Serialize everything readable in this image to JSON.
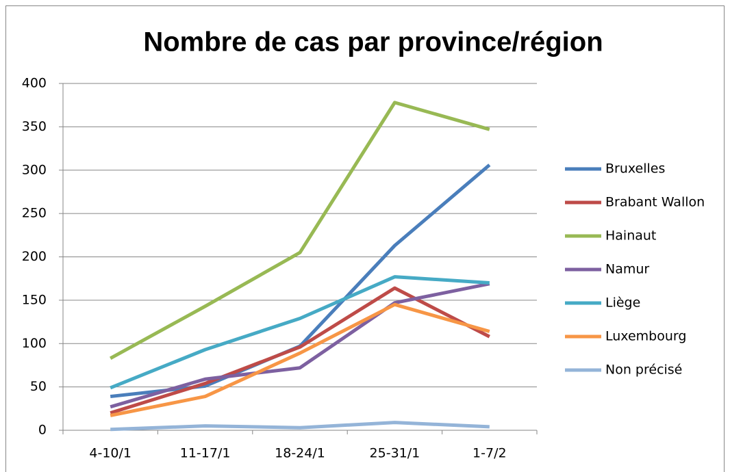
{
  "chart_data": {
    "type": "line",
    "title": "Nombre de cas par province/région",
    "categories": [
      "4-10/1",
      "11-17/1",
      "18-24/1",
      "25-31/1",
      "1-7/2"
    ],
    "series": [
      {
        "name": "Bruxelles",
        "color": "#4a7ebb",
        "values": [
          39,
          51,
          97,
          213,
          306
        ]
      },
      {
        "name": "Brabant Wallon",
        "color": "#be4b48",
        "values": [
          20,
          54,
          96,
          164,
          108
        ]
      },
      {
        "name": "Hainaut",
        "color": "#98b954",
        "values": [
          83,
          143,
          205,
          378,
          347
        ]
      },
      {
        "name": "Namur",
        "color": "#7d60a0",
        "values": [
          27,
          59,
          72,
          147,
          169
        ]
      },
      {
        "name": "Liège",
        "color": "#46aac5",
        "values": [
          49,
          93,
          129,
          177,
          170
        ]
      },
      {
        "name": "Luxembourg",
        "color": "#f79646",
        "values": [
          17,
          39,
          89,
          145,
          114
        ]
      },
      {
        "name": "Non précisé",
        "color": "#94b4d8",
        "values": [
          1,
          5,
          3,
          9,
          4
        ]
      }
    ],
    "ylim": [
      0,
      400
    ],
    "yticks": [
      0,
      50,
      100,
      150,
      200,
      250,
      300,
      350,
      400
    ],
    "grid": true,
    "legend": "right"
  }
}
